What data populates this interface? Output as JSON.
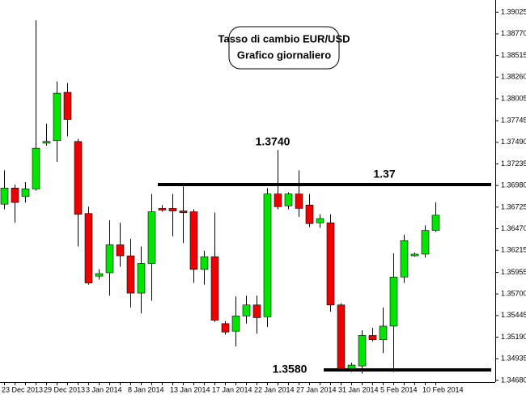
{
  "chart_data": {
    "type": "candlestick",
    "title_lines": [
      "Tasso di cambio EUR/USD",
      "Grafico giornaliero"
    ],
    "annotations": [
      "1.3740",
      "1.37",
      "1.3580"
    ],
    "categories": [
      "23 Dec 2013",
      null,
      null,
      null,
      "29 Dec 2013",
      null,
      null,
      null,
      "3 Jan 2014",
      null,
      null,
      null,
      "8 Jan 2014",
      null,
      null,
      null,
      "13 Jan 2014",
      null,
      null,
      null,
      "17 Jan 2014",
      null,
      null,
      null,
      "22 Jan 2014",
      null,
      null,
      null,
      "27 Jan 2014",
      null,
      null,
      null,
      "31 Jan 2014",
      null,
      null,
      null,
      "5 Feb 2014",
      null,
      null,
      null,
      "10 Feb 2014",
      null
    ],
    "open": [
      1.3676,
      1.3695,
      1.3685,
      1.3694,
      1.3748,
      1.3751,
      1.3808,
      1.375,
      1.3665,
      1.3591,
      1.3595,
      1.3628,
      1.3615,
      1.3571,
      1.3606,
      1.3671,
      1.3671,
      1.3668,
      1.3667,
      1.3599,
      1.3614,
      1.3535,
      1.3526,
      1.3544,
      1.3557,
      1.3543,
      1.3688,
      1.3674,
      1.3688,
      1.3675,
      1.3654,
      1.3654,
      1.3557,
      1.3482,
      1.3485,
      1.3521,
      1.3516,
      1.3532,
      1.359,
      1.3615,
      1.3617,
      1.3645
    ],
    "high": [
      1.3716,
      1.3699,
      1.3702,
      1.3893,
      1.3771,
      1.3821,
      1.3819,
      1.3753,
      1.3673,
      1.3599,
      1.3657,
      1.3654,
      1.3635,
      1.3626,
      1.3688,
      1.3675,
      1.3688,
      1.3697,
      1.367,
      1.3621,
      1.3666,
      1.3538,
      1.3567,
      1.3568,
      1.3568,
      1.3695,
      1.374,
      1.369,
      1.3716,
      1.3688,
      1.3664,
      1.3664,
      1.3559,
      1.3489,
      1.3527,
      1.353,
      1.3554,
      1.3618,
      1.364,
      1.3619,
      1.3651,
      1.3678
    ],
    "low": [
      1.367,
      1.3654,
      1.3678,
      1.3692,
      1.3745,
      1.3726,
      1.3756,
      1.3626,
      1.3581,
      1.3587,
      1.3568,
      1.3602,
      1.3554,
      1.3547,
      1.3562,
      1.3667,
      1.3638,
      1.363,
      1.3583,
      1.3581,
      1.3537,
      1.3522,
      1.3508,
      1.3535,
      1.3523,
      1.3531,
      1.367,
      1.367,
      1.3661,
      1.3649,
      1.3648,
      1.3549,
      1.3479,
      1.3478,
      1.3476,
      1.3514,
      1.35,
      1.3478,
      1.3583,
      1.3614,
      1.3613,
      1.3643
    ],
    "close": [
      1.3695,
      1.3678,
      1.3694,
      1.3742,
      1.375,
      1.3807,
      1.3776,
      1.3664,
      1.3583,
      1.3594,
      1.3628,
      1.3615,
      1.3571,
      1.3606,
      1.3667,
      1.3669,
      1.3668,
      1.3666,
      1.3599,
      1.3614,
      1.3539,
      1.3525,
      1.3544,
      1.3557,
      1.3542,
      1.3688,
      1.3673,
      1.3688,
      1.3671,
      1.3653,
      1.3659,
      1.3557,
      1.3482,
      1.3486,
      1.3521,
      1.3516,
      1.3532,
      1.359,
      1.3633,
      1.3617,
      1.3645,
      1.3663
    ],
    "up_color": "#00e600",
    "down_color": "#ee0000",
    "ylim": [
      1.3466,
      1.3917
    ],
    "yticks": [
      1.39025,
      {
        "value": 1.3877,
        "label": "1.38770"
      },
      1.38515,
      {
        "value": 1.3826,
        "label": "1.38260"
      },
      1.38005,
      1.37745,
      {
        "value": 1.3749,
        "label": "1.37490"
      },
      1.37235,
      {
        "value": 1.3698,
        "label": "1.36980"
      },
      1.36725,
      {
        "value": 1.3647,
        "label": "1.36470"
      },
      1.36215,
      1.35955,
      {
        "value": 1.357,
        "label": "1.35700"
      },
      1.35445,
      {
        "value": 1.3519,
        "label": "1.35190"
      },
      1.34935,
      {
        "value": 1.3468,
        "label": "1.34680"
      }
    ]
  }
}
